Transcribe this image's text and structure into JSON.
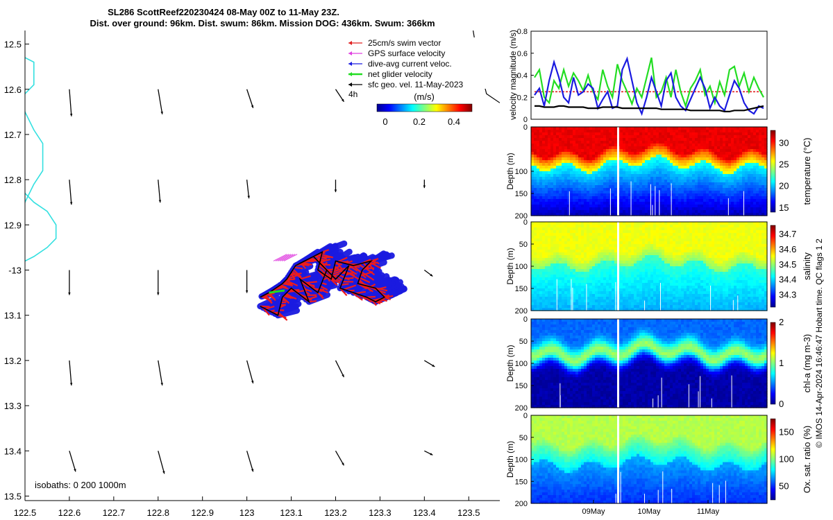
{
  "chart_data": [
    {
      "type": "map",
      "title_lines": [
        "SL286 ScottReef220230424 08-May 00Z to 11-May 23Z.",
        "Dist. over ground: 96km. Dist. swum: 86km. Mission DOG: 436km. Swum: 366km"
      ],
      "xlim": [
        122.5,
        123.57
      ],
      "ylim": [
        -13.51,
        -12.47
      ],
      "x_ticks": [
        {
          "v": 122.5,
          "t": "122.5"
        },
        {
          "v": 122.6,
          "t": "122.6"
        },
        {
          "v": 122.7,
          "t": "122.7"
        },
        {
          "v": 122.8,
          "t": "122.8"
        },
        {
          "v": 122.9,
          "t": "122.9"
        },
        {
          "v": 123.0,
          "t": "123"
        },
        {
          "v": 123.1,
          "t": "123.1"
        },
        {
          "v": 123.2,
          "t": "123.2"
        },
        {
          "v": 123.3,
          "t": "123.3"
        },
        {
          "v": 123.4,
          "t": "123.4"
        },
        {
          "v": 123.5,
          "t": "123.5"
        }
      ],
      "y_ticks": [
        {
          "v": -12.5,
          "t": "12.5"
        },
        {
          "v": -12.6,
          "t": "12.6"
        },
        {
          "v": -12.7,
          "t": "12.7"
        },
        {
          "v": -12.8,
          "t": "12.8"
        },
        {
          "v": -12.9,
          "t": "12.9"
        },
        {
          "v": -13.0,
          "t": "-13"
        },
        {
          "v": -13.1,
          "t": "13.1"
        },
        {
          "v": -13.2,
          "t": "13.2"
        },
        {
          "v": -13.3,
          "t": "13.3"
        },
        {
          "v": -13.4,
          "t": "13.4"
        },
        {
          "v": -13.5,
          "t": "13.5"
        }
      ],
      "legend": {
        "position": "top-right",
        "entries": [
          {
            "label": "25cm/s swim vector",
            "color": "#e02020"
          },
          {
            "label": "GPS surface velocity",
            "color": "#e040e0"
          },
          {
            "label": "dive-avg current veloc.",
            "color": "#1a1ae0"
          },
          {
            "label": "net glider velocity",
            "color": "#22dd22"
          },
          {
            "label": "sfc geo. vel. 11-May-2023",
            "color": "#000000"
          }
        ],
        "note": "4h"
      },
      "colorbar": {
        "label": "(m/s)",
        "ticks": [
          "0",
          "0.2",
          "0.4"
        ],
        "range": [
          0,
          0.5
        ]
      },
      "isobaths_label": "isobaths: 0   200  1000m",
      "isobath_200m_lon": [
        122.5,
        122.52,
        122.52,
        122.49,
        122.5,
        122.52,
        122.54,
        122.54,
        122.52,
        122.5,
        122.49
      ],
      "isobath_200m_lat": [
        -12.53,
        -12.54,
        -12.59,
        -12.62,
        -12.65,
        -12.69,
        -12.72,
        -12.78,
        -12.81,
        -12.85,
        -12.9
      ],
      "isobath_200m_b_lon": [
        122.5,
        122.52,
        122.55,
        122.57,
        122.57,
        122.55,
        122.52,
        122.5
      ],
      "isobath_200m_b_lat": [
        -12.83,
        -12.85,
        -12.87,
        -12.9,
        -12.93,
        -12.95,
        -12.97,
        -12.98
      ],
      "coastline_lon": [
        123.51,
        123.52,
        123.53,
        123.54,
        123.57
      ],
      "coastline_lat": [
        -12.47,
        -12.53,
        -12.57,
        -12.61,
        -12.63
      ],
      "geo_vectors": {
        "lon": [
          122.6,
          122.8,
          123.0,
          123.2,
          123.4
        ],
        "lat": [
          -12.6,
          -12.8,
          -13.0,
          -13.2,
          -13.4
        ],
        "u": [
          [
            0.001,
            0.002,
            0.003,
            0.004,
            0
          ],
          [
            0.001,
            0.001,
            0.001,
            0.0,
            0.0
          ],
          [
            0.0,
            0.0,
            0.0,
            0.0,
            0.004
          ],
          [
            0.001,
            0.002,
            0.003,
            0.004,
            0.005
          ],
          [
            0.003,
            0.003,
            0.003,
            0.004,
            0.004
          ]
        ],
        "v": [
          [
            -0.013,
            -0.012,
            -0.009,
            -0.006,
            0
          ],
          [
            -0.012,
            -0.011,
            -0.009,
            -0.006,
            -0.004
          ],
          [
            -0.012,
            -0.012,
            -0.011,
            0.0,
            -0.003
          ],
          [
            -0.012,
            -0.012,
            -0.011,
            -0.008,
            -0.003
          ],
          [
            -0.01,
            -0.011,
            -0.01,
            -0.007,
            -0.002
          ]
        ]
      },
      "glider_track_lon": [
        123.03,
        123.07,
        123.08,
        123.1,
        123.14,
        123.12,
        123.16,
        123.18,
        123.15,
        123.2,
        123.23,
        123.21,
        123.27,
        123.29,
        123.31,
        123.29,
        123.25,
        123.26,
        123.28,
        123.24,
        123.2,
        123.19,
        123.16,
        123.17,
        123.13,
        123.11,
        123.09,
        123.08,
        123.05,
        123.03
      ],
      "glider_track_lat": [
        -13.08,
        -13.1,
        -13.06,
        -13.04,
        -13.07,
        -13.02,
        -13.05,
        -13.0,
        -12.97,
        -13.02,
        -12.99,
        -13.04,
        -13.06,
        -13.07,
        -13.06,
        -13.04,
        -13.03,
        -13.0,
        -12.98,
        -12.99,
        -12.98,
        -13.02,
        -13.0,
        -12.96,
        -12.98,
        -12.99,
        -13.02,
        -13.03,
        -13.05,
        -13.06
      ]
    },
    {
      "type": "line",
      "ylabel": "velocity magnitude (m/s)",
      "ylim": [
        0,
        0.8
      ],
      "y_ticks": [
        "0",
        "0.2",
        "0.4",
        "0.6",
        "0.8"
      ],
      "series": [
        {
          "color": "#e02020",
          "style": "dashed",
          "values": [
            0.25,
            0.25,
            0.25,
            0.25,
            0.25,
            0.25,
            0.25,
            0.25,
            0.25,
            0.25,
            0.25,
            0.25,
            0.25,
            0.25,
            0.25,
            0.25,
            0.25,
            0.25,
            0.25,
            0.25,
            0.25,
            0.25,
            0.25,
            0.25,
            0.25,
            0.25,
            0.25,
            0.25,
            0.25,
            0.25,
            0.25,
            0.25,
            0.25,
            0.25,
            0.25,
            0.25,
            0.25,
            0.25,
            0.25,
            0.25,
            0.25,
            0.25,
            0.25,
            0.25,
            0.25,
            0.25,
            0.25,
            0.25
          ]
        },
        {
          "color": "#22dd22",
          "values": [
            0.38,
            0.45,
            0.2,
            0.15,
            0.35,
            0.28,
            0.45,
            0.3,
            0.42,
            0.35,
            0.26,
            0.4,
            0.25,
            0.18,
            0.45,
            0.3,
            0.2,
            0.5,
            0.35,
            0.25,
            0.14,
            0.28,
            0.2,
            0.38,
            0.56,
            0.2,
            0.25,
            0.38,
            0.2,
            0.45,
            0.25,
            0.12,
            0.28,
            0.35,
            0.45,
            0.22,
            0.3,
            0.15,
            0.34,
            0.22,
            0.45,
            0.48,
            0.3,
            0.42,
            0.25,
            0.38,
            0.28,
            0.2
          ]
        },
        {
          "color": "#1a1ae0",
          "values": [
            0.22,
            0.28,
            0.12,
            0.35,
            0.52,
            0.38,
            0.2,
            0.15,
            0.38,
            0.22,
            0.25,
            0.32,
            0.28,
            0.1,
            0.18,
            0.25,
            0.1,
            0.12,
            0.45,
            0.55,
            0.35,
            0.15,
            0.05,
            0.2,
            0.38,
            0.25,
            0.12,
            0.35,
            0.42,
            0.2,
            0.12,
            0.08,
            0.18,
            0.28,
            0.38,
            0.28,
            0.1,
            0.2,
            0.12,
            0.08,
            0.22,
            0.35,
            0.28,
            0.15,
            0.08,
            0.05,
            0.12,
            0.1
          ]
        },
        {
          "color": "#000000",
          "values": [
            0.12,
            0.12,
            0.11,
            0.11,
            0.11,
            0.12,
            0.12,
            0.11,
            0.11,
            0.11,
            0.11,
            0.1,
            0.1,
            0.1,
            0.11,
            0.11,
            0.11,
            0.11,
            0.1,
            0.1,
            0.1,
            0.1,
            0.1,
            0.1,
            0.1,
            0.1,
            0.09,
            0.09,
            0.09,
            0.09,
            0.09,
            0.09,
            0.08,
            0.08,
            0.08,
            0.08,
            0.08,
            0.08,
            0.08,
            0.07,
            0.07,
            0.08,
            0.08,
            0.08,
            0.09,
            0.1,
            0.11,
            0.12
          ]
        }
      ]
    },
    {
      "type": "heatmap",
      "ylabel": "Depth (m)",
      "cb_label": "temperature (°C)",
      "cb_ticks": [
        {
          "v": 15,
          "t": "15"
        },
        {
          "v": 20,
          "t": "20"
        },
        {
          "v": 25,
          "t": "25"
        },
        {
          "v": 30,
          "t": "30"
        }
      ],
      "cb_range": [
        14,
        33
      ],
      "surface_value": 31,
      "deep_value": 15,
      "mld": 55,
      "thermocline": 85
    },
    {
      "type": "heatmap",
      "ylabel": "Depth (m)",
      "cb_label": "salinity",
      "cb_ticks": [
        {
          "v": 34.3,
          "t": "34.3"
        },
        {
          "v": 34.4,
          "t": "34.4"
        },
        {
          "v": 34.5,
          "t": "34.5"
        },
        {
          "v": 34.6,
          "t": "34.6"
        },
        {
          "v": 34.7,
          "t": "34.7"
        }
      ],
      "cb_range": [
        34.22,
        34.76
      ],
      "surface_value": 34.55,
      "deep_value": 34.38,
      "mld": 70,
      "thermocline": 95
    },
    {
      "type": "heatmap",
      "ylabel": "Depth (m)",
      "cb_label": "chl-a (mg m-3)",
      "cb_ticks": [
        {
          "v": 0,
          "t": "0"
        },
        {
          "v": 1,
          "t": "1"
        },
        {
          "v": 2,
          "t": "2"
        }
      ],
      "cb_range": [
        0,
        2
      ],
      "surface_value": 0.45,
      "max_value": 1.05,
      "max_depth": 75,
      "deep_value": 0.08
    },
    {
      "type": "heatmap",
      "ylabel": "Depth (m)",
      "cb_label": "Ox. sat. ratio (%)",
      "cb_ticks": [
        {
          "v": 50,
          "t": "50"
        },
        {
          "v": 100,
          "t": "100"
        },
        {
          "v": 150,
          "t": "150"
        }
      ],
      "cb_range": [
        25,
        175
      ],
      "surface_value": 108,
      "deep_value": 50,
      "mld": 60,
      "thermocline": 110
    }
  ],
  "depth_ticks": [
    "0",
    "50",
    "100",
    "150",
    "200"
  ],
  "depth_ticks_coarse": [
    "0",
    "100",
    "150",
    "200"
  ],
  "time_ticks": [
    "09May",
    "10May",
    "11May"
  ],
  "side_note": "© IMOS 14-Apr-2024 16:46:47 Hobart time. QC flags 1  2"
}
